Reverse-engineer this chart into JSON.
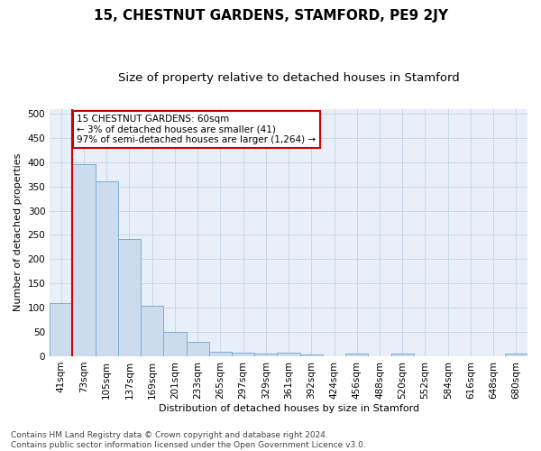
{
  "title": "15, CHESTNUT GARDENS, STAMFORD, PE9 2JY",
  "subtitle": "Size of property relative to detached houses in Stamford",
  "xlabel": "Distribution of detached houses by size in Stamford",
  "ylabel": "Number of detached properties",
  "bar_labels": [
    "41sqm",
    "73sqm",
    "105sqm",
    "137sqm",
    "169sqm",
    "201sqm",
    "233sqm",
    "265sqm",
    "297sqm",
    "329sqm",
    "361sqm",
    "392sqm",
    "424sqm",
    "456sqm",
    "488sqm",
    "520sqm",
    "552sqm",
    "584sqm",
    "616sqm",
    "648sqm",
    "680sqm"
  ],
  "bar_values": [
    110,
    395,
    360,
    242,
    104,
    50,
    30,
    10,
    7,
    6,
    7,
    4,
    0,
    5,
    0,
    5,
    0,
    0,
    0,
    0,
    5
  ],
  "bar_color": "#ccdcee",
  "bar_edge_color": "#7bafd4",
  "property_line_color": "#cc0000",
  "annotation_text": "15 CHESTNUT GARDENS: 60sqm\n← 3% of detached houses are smaller (41)\n97% of semi-detached houses are larger (1,264) →",
  "annotation_box_color": "#ffffff",
  "annotation_box_edge": "#cc0000",
  "ylim": [
    0,
    510
  ],
  "yticks": [
    0,
    50,
    100,
    150,
    200,
    250,
    300,
    350,
    400,
    450,
    500
  ],
  "grid_color": "#c8d8e8",
  "bg_color": "#e8eff8",
  "footer_text": "Contains HM Land Registry data © Crown copyright and database right 2024.\nContains public sector information licensed under the Open Government Licence v3.0.",
  "title_fontsize": 11,
  "subtitle_fontsize": 9.5,
  "label_fontsize": 8,
  "tick_fontsize": 7.5,
  "footer_fontsize": 6.5,
  "annotation_fontsize": 7.5
}
